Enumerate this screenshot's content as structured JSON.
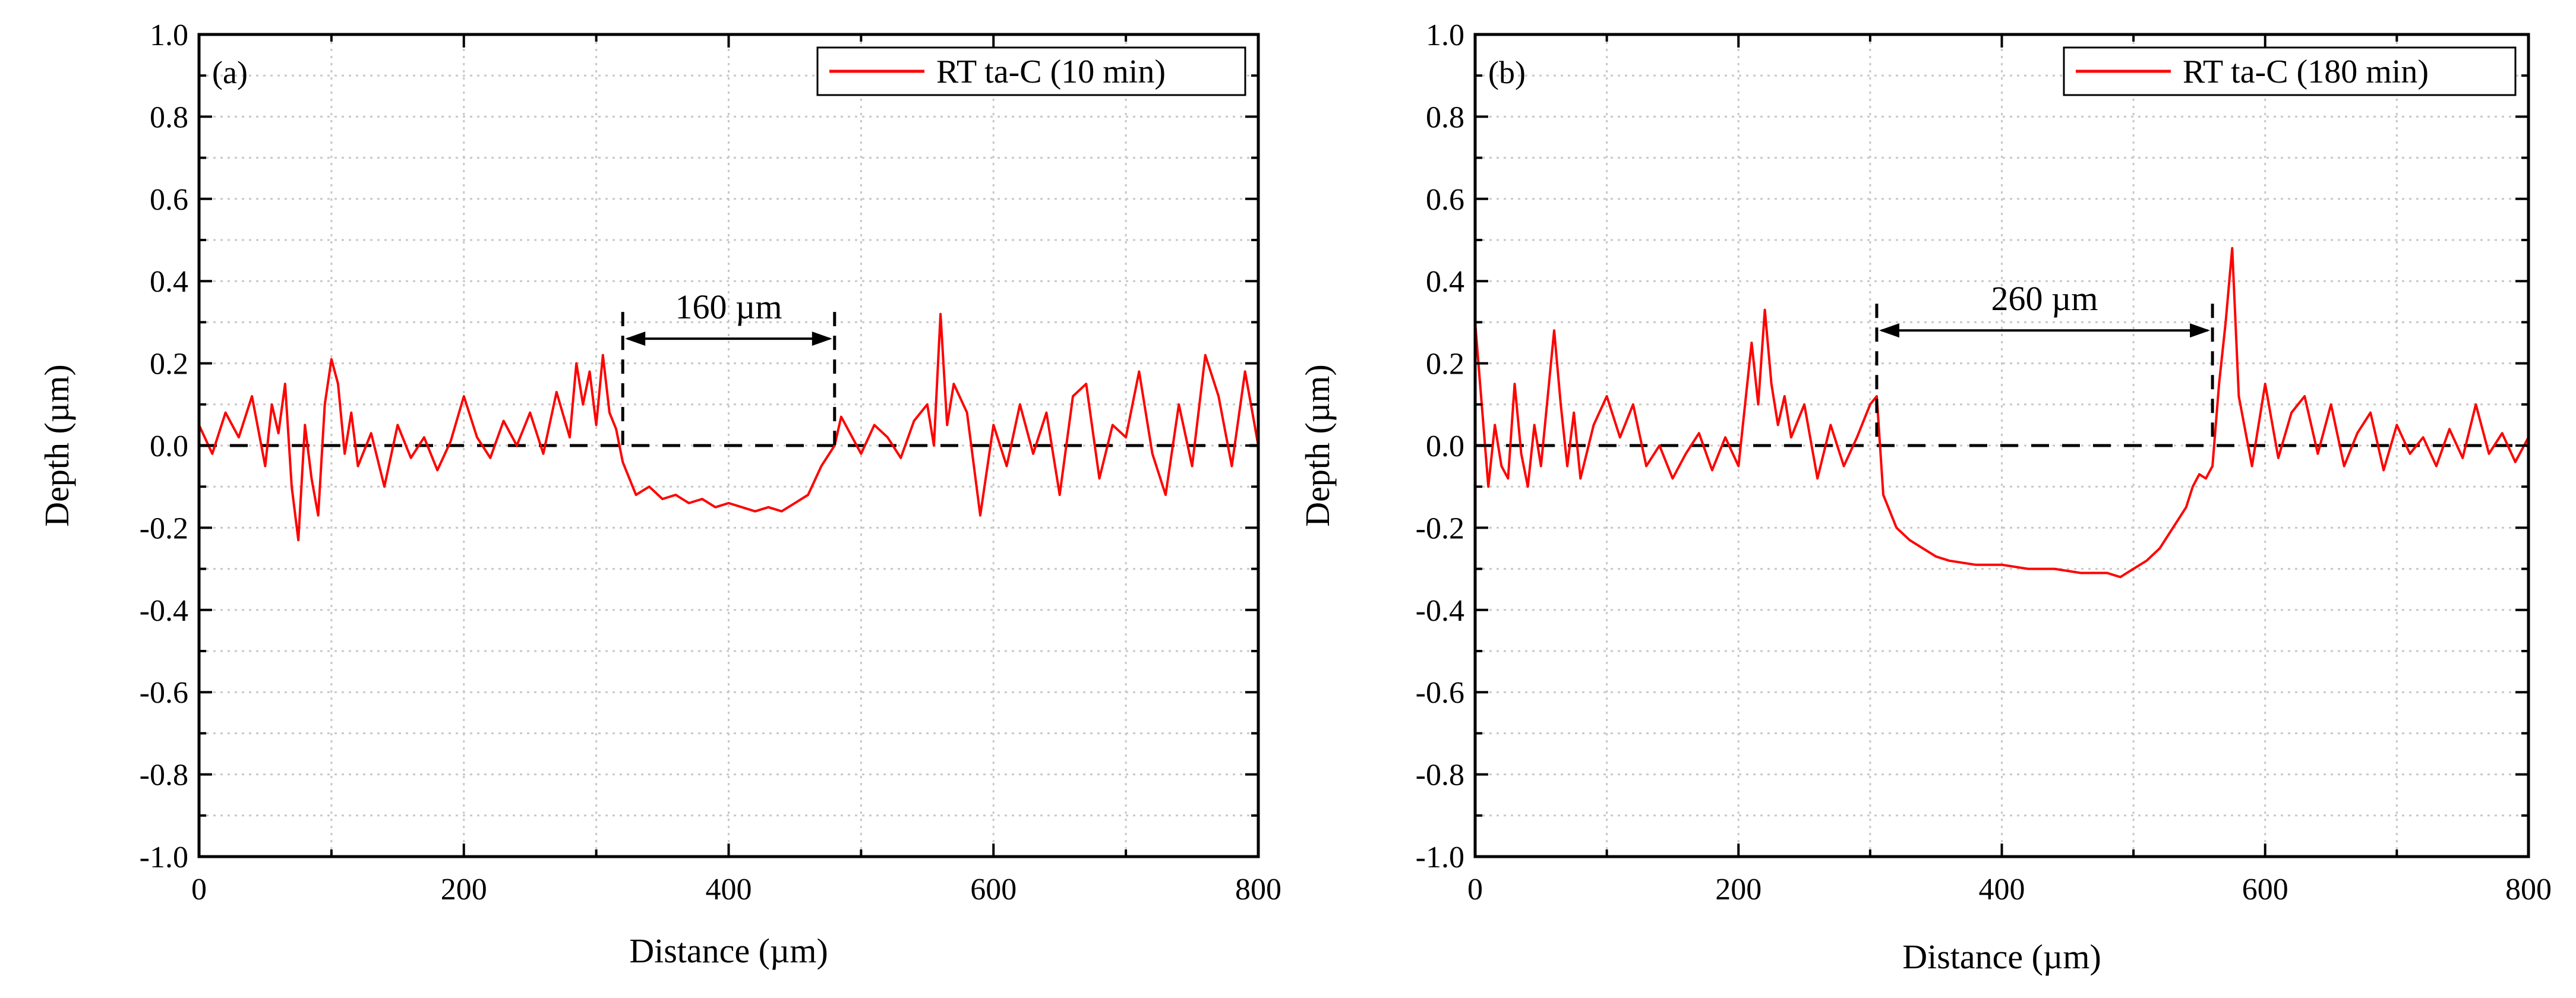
{
  "chart_data": [
    {
      "type": "line",
      "panel_label": "(a)",
      "xlabel": "Distance (µm)",
      "ylabel": "Depth (µm)",
      "xlim": [
        0,
        800
      ],
      "ylim": [
        -1.0,
        1.0
      ],
      "xticks": [
        0,
        200,
        400,
        600,
        800
      ],
      "xtick_labels": [
        "0",
        "200",
        "400",
        "600",
        "800"
      ],
      "yticks": [
        1.0,
        0.8,
        0.6,
        0.4,
        0.2,
        0.0,
        -0.2,
        -0.4,
        -0.6,
        -0.8,
        -1.0
      ],
      "ytick_labels": [
        "1.0",
        "0.8",
        "0.6",
        "0.4",
        "0.2",
        "0.0",
        "-0.2",
        "-0.4",
        "-0.6",
        "-0.8",
        "-1.0"
      ],
      "grid": true,
      "legend": {
        "label": "RT ta-C (10 min)",
        "placement": "top-right"
      },
      "reference_line": {
        "y": 0.0,
        "style": "dashed"
      },
      "annotation": {
        "text": "160 µm",
        "x_start": 320,
        "x_end": 480,
        "y": 0.26
      },
      "series": [
        {
          "name": "RT ta-C (10 min)",
          "color": "#ff0000",
          "x": [
            0,
            10,
            20,
            30,
            40,
            50,
            55,
            60,
            65,
            70,
            75,
            80,
            85,
            90,
            95,
            100,
            105,
            110,
            115,
            120,
            130,
            140,
            150,
            160,
            170,
            180,
            190,
            200,
            210,
            220,
            230,
            240,
            250,
            260,
            270,
            280,
            285,
            290,
            295,
            300,
            305,
            310,
            315,
            320,
            330,
            340,
            350,
            360,
            370,
            380,
            390,
            400,
            410,
            420,
            430,
            440,
            450,
            460,
            470,
            480,
            485,
            490,
            500,
            510,
            520,
            530,
            540,
            550,
            555,
            560,
            565,
            570,
            580,
            590,
            600,
            610,
            620,
            630,
            640,
            650,
            660,
            670,
            680,
            690,
            700,
            710,
            720,
            730,
            740,
            750,
            760,
            770,
            780,
            790,
            800
          ],
          "y": [
            0.05,
            -0.02,
            0.08,
            0.02,
            0.12,
            -0.05,
            0.1,
            0.03,
            0.15,
            -0.1,
            -0.23,
            0.05,
            -0.08,
            -0.17,
            0.1,
            0.21,
            0.15,
            -0.02,
            0.08,
            -0.05,
            0.03,
            -0.1,
            0.05,
            -0.03,
            0.02,
            -0.06,
            0.01,
            0.12,
            0.02,
            -0.03,
            0.06,
            0.0,
            0.08,
            -0.02,
            0.13,
            0.02,
            0.2,
            0.1,
            0.18,
            0.05,
            0.22,
            0.08,
            0.04,
            -0.04,
            -0.12,
            -0.1,
            -0.13,
            -0.12,
            -0.14,
            -0.13,
            -0.15,
            -0.14,
            -0.15,
            -0.16,
            -0.15,
            -0.16,
            -0.14,
            -0.12,
            -0.05,
            0.0,
            0.07,
            0.04,
            -0.02,
            0.05,
            0.02,
            -0.03,
            0.06,
            0.1,
            0.0,
            0.32,
            0.05,
            0.15,
            0.08,
            -0.17,
            0.05,
            -0.05,
            0.1,
            -0.02,
            0.08,
            -0.12,
            0.12,
            0.15,
            -0.08,
            0.05,
            0.02,
            0.18,
            -0.02,
            -0.12,
            0.1,
            -0.05,
            0.22,
            0.12,
            -0.05,
            0.18,
            0.0
          ]
        }
      ]
    },
    {
      "type": "line",
      "panel_label": "(b)",
      "xlabel": "Distance (µm)",
      "ylabel": "Depth (µm)",
      "xlim": [
        0,
        800
      ],
      "ylim": [
        -1.0,
        1.0
      ],
      "xticks": [
        0,
        200,
        400,
        600,
        800
      ],
      "xtick_labels": [
        "0",
        "200",
        "400",
        "600",
        "800"
      ],
      "yticks": [
        1.0,
        0.8,
        0.6,
        0.4,
        0.2,
        0.0,
        -0.2,
        -0.4,
        -0.6,
        -0.8,
        -1.0
      ],
      "ytick_labels": [
        "1.0",
        "0.8",
        "0.6",
        "0.4",
        "0.2",
        "0.0",
        "-0.2",
        "-0.4",
        "-0.6",
        "-0.8",
        "-1.0"
      ],
      "grid": true,
      "legend": {
        "label": "RT ta-C (180 min)",
        "placement": "top-right"
      },
      "reference_line": {
        "y": 0.0,
        "style": "dashed"
      },
      "annotation": {
        "text": "260 µm",
        "x_start": 305,
        "x_end": 560,
        "y": 0.28
      },
      "series": [
        {
          "name": "RT ta-C (180 min)",
          "color": "#ff0000",
          "x": [
            0,
            5,
            10,
            15,
            20,
            25,
            30,
            35,
            40,
            45,
            50,
            60,
            65,
            70,
            75,
            80,
            90,
            100,
            110,
            120,
            130,
            140,
            150,
            160,
            170,
            180,
            190,
            200,
            210,
            215,
            220,
            225,
            230,
            235,
            240,
            250,
            260,
            270,
            280,
            290,
            300,
            305,
            310,
            320,
            330,
            340,
            350,
            360,
            380,
            400,
            420,
            440,
            460,
            480,
            490,
            500,
            510,
            520,
            530,
            540,
            545,
            550,
            555,
            560,
            565,
            570,
            575,
            580,
            590,
            600,
            610,
            620,
            630,
            640,
            650,
            660,
            670,
            680,
            690,
            700,
            710,
            720,
            730,
            740,
            750,
            760,
            770,
            780,
            790,
            800
          ],
          "y": [
            0.3,
            0.1,
            -0.1,
            0.05,
            -0.05,
            -0.08,
            0.15,
            -0.02,
            -0.1,
            0.05,
            -0.05,
            0.28,
            0.1,
            -0.05,
            0.08,
            -0.08,
            0.05,
            0.12,
            0.02,
            0.1,
            -0.05,
            0.0,
            -0.08,
            -0.02,
            0.03,
            -0.06,
            0.02,
            -0.05,
            0.25,
            0.1,
            0.33,
            0.15,
            0.05,
            0.12,
            0.02,
            0.1,
            -0.08,
            0.05,
            -0.05,
            0.02,
            0.1,
            0.12,
            -0.12,
            -0.2,
            -0.23,
            -0.25,
            -0.27,
            -0.28,
            -0.29,
            -0.29,
            -0.3,
            -0.3,
            -0.31,
            -0.31,
            -0.32,
            -0.3,
            -0.28,
            -0.25,
            -0.2,
            -0.15,
            -0.1,
            -0.07,
            -0.08,
            -0.05,
            0.15,
            0.3,
            0.48,
            0.12,
            -0.05,
            0.15,
            -0.03,
            0.08,
            0.12,
            -0.02,
            0.1,
            -0.05,
            0.03,
            0.08,
            -0.06,
            0.05,
            -0.02,
            0.02,
            -0.05,
            0.04,
            -0.03,
            0.1,
            -0.02,
            0.03,
            -0.04,
            0.02
          ]
        }
      ]
    }
  ]
}
